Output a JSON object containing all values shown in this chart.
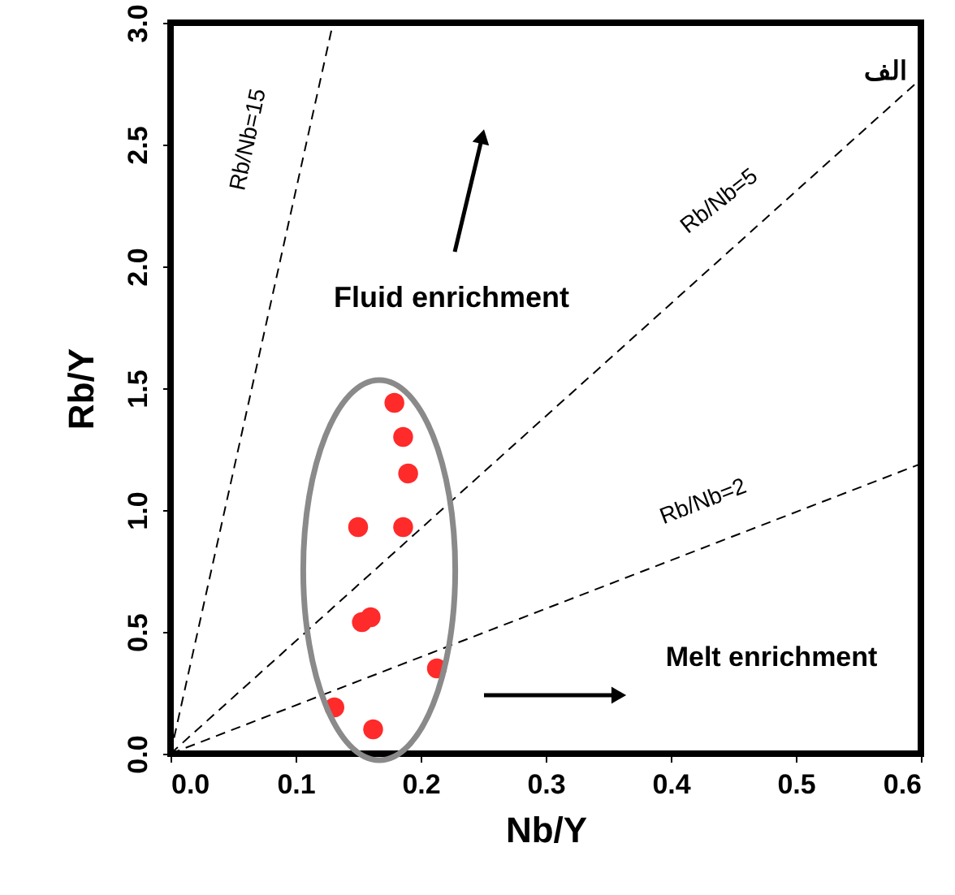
{
  "chart_data": {
    "type": "scatter",
    "xlabel": "Nb/Y",
    "ylabel": "Rb/Y",
    "xlim": [
      0,
      0.6
    ],
    "ylim": [
      0,
      3.0
    ],
    "xticks": [
      {
        "value": 0,
        "label": "0.0"
      },
      0.1,
      0.2,
      0.3,
      0.4,
      0.5,
      0.6
    ],
    "yticks": [
      {
        "value": 0,
        "label": "0.0"
      },
      0.5,
      {
        "value": 1,
        "label": "1.0"
      },
      1.5,
      {
        "value": 2,
        "label": "2.0"
      },
      2.5,
      {
        "value": 3,
        "label": "3.0"
      }
    ],
    "grid": false,
    "marker": "circle",
    "annotations": [
      "الف",
      "Fluid enrichment",
      "Melt enrichment"
    ],
    "series": [
      {
        "color": "#ff2a2a",
        "x": [
          0.179,
          0.186,
          0.19,
          0.15,
          0.186,
          0.153,
          0.16,
          0.213,
          0.131,
          0.162
        ],
        "values": [
          1.44,
          1.3,
          1.15,
          0.93,
          0.93,
          0.54,
          0.56,
          0.35,
          0.19,
          0.1
        ]
      },
      {
        "type": "line",
        "name": "Rb/Nb=15",
        "color": "#000000",
        "line_style": "dashed",
        "marker": "none",
        "x": [
          0,
          0.13
        ],
        "values": [
          0,
          3.0
        ]
      },
      {
        "type": "line",
        "name": "Rb/Nb=5",
        "color": "#000000",
        "line_style": "dashed",
        "marker": "none",
        "x": [
          0,
          0.6
        ],
        "values": [
          0,
          2.77
        ]
      },
      {
        "type": "line",
        "name": "Rb/Nb=2",
        "color": "#000000",
        "line_style": "dashed",
        "marker": "none",
        "x": [
          0,
          0.6
        ],
        "values": [
          0,
          1.19
        ]
      }
    ]
  }
}
